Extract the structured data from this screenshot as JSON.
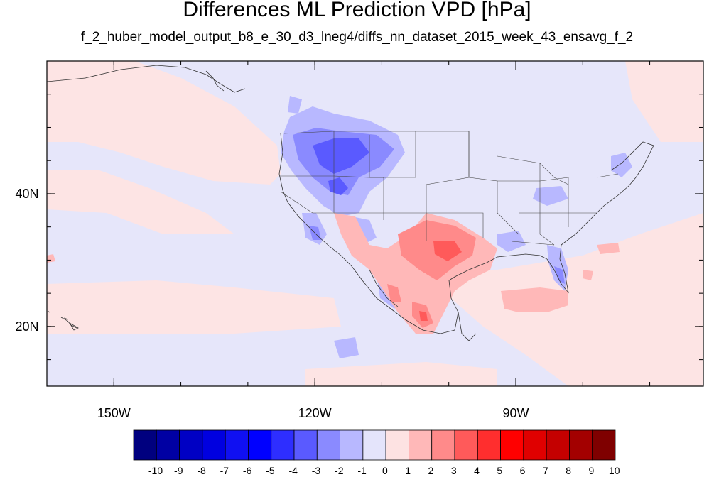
{
  "title": "Differences ML Prediction VPD [hPa]",
  "subtitle": "f_2_huber_model_output_b8_e_30_d3_lneg4/diffs_nn_dataset_2015_week_43_ensavg_f_2",
  "map": {
    "lon_range": [
      -160,
      -62
    ],
    "lat_range": [
      11,
      60
    ],
    "lon_ticks": [
      {
        "value": -150,
        "label": "150W"
      },
      {
        "value": -120,
        "label": "120W"
      },
      {
        "value": -90,
        "label": "90W"
      }
    ],
    "lat_ticks": [
      {
        "value": 40,
        "label": "40N"
      },
      {
        "value": 20,
        "label": "20N"
      }
    ],
    "field": "VPD difference",
    "units": "hPa"
  },
  "colorbar": {
    "labels": [
      "-10",
      "-9",
      "-8",
      "-7",
      "-6",
      "-5",
      "-4",
      "-3",
      "-2",
      "-1",
      "0",
      "1",
      "2",
      "3",
      "4",
      "5",
      "6",
      "7",
      "8",
      "9",
      "10"
    ],
    "colors": [
      "#00007f",
      "#0000a3",
      "#0000c4",
      "#0000e0",
      "#1010f2",
      "#0000ff",
      "#2e2eff",
      "#5a5aff",
      "#8a8aff",
      "#b8b8ff",
      "#e4e4fb",
      "#fde2e2",
      "#ffb8b8",
      "#ff8a8a",
      "#ff5a5a",
      "#ff2e2e",
      "#ff0000",
      "#e00000",
      "#c40000",
      "#a30000",
      "#7f0000"
    ]
  }
}
